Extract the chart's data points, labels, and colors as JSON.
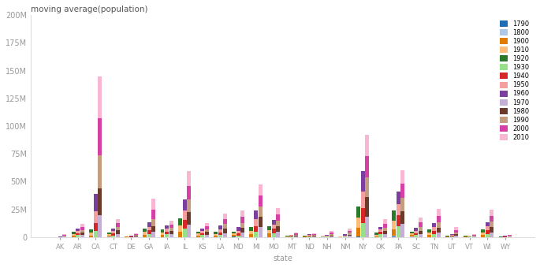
{
  "title": "moving average(population)",
  "xlabel": "state",
  "ylabel": "",
  "years": [
    "1790",
    "1800",
    "1900",
    "1910",
    "1920",
    "1930",
    "1940",
    "1950",
    "1960",
    "1970",
    "1980",
    "1990",
    "2000",
    "2010"
  ],
  "colors": [
    "#1f6eb5",
    "#aec6e8",
    "#e07b00",
    "#ffbb78",
    "#2a7a2a",
    "#98df8a",
    "#d62728",
    "#f4a0a0",
    "#7b3f9e",
    "#c5b0d5",
    "#6b3a2a",
    "#c49c80",
    "#d63fa6",
    "#f7b6d2"
  ],
  "states": [
    "AK",
    "AR",
    "CA",
    "CT",
    "DE",
    "GA",
    "IA",
    "IL",
    "KS",
    "LA",
    "MD",
    "MI",
    "MO",
    "MT",
    "ND",
    "NH",
    "NM",
    "NY",
    "OK",
    "PA",
    "SC",
    "TN",
    "UT",
    "VT",
    "WI",
    "WY"
  ],
  "data": {
    "AK": [
      0,
      0,
      0,
      0,
      0,
      0,
      0,
      128643,
      226167,
      302173,
      401851,
      550043,
      626932,
      710231
    ],
    "AR": [
      0,
      0,
      1311564,
      1574449,
      1752204,
      1854482,
      1949387,
      1909511,
      1786272,
      1923295,
      2286357,
      2350725,
      2673400,
      2915918
    ],
    "CA": [
      0,
      0,
      1485053,
      2377549,
      3426861,
      5677251,
      6907387,
      10586223,
      15717204,
      19953134,
      23667902,
      29760021,
      33871648,
      37253956
    ],
    "CT": [
      237946,
      251002,
      908420,
      1114756,
      1380631,
      1606903,
      1709242,
      2007280,
      2535234,
      3031709,
      3107576,
      3287116,
      3405565,
      3574097
    ],
    "DE": [
      59094,
      64273,
      184735,
      202322,
      223003,
      238380,
      266505,
      318085,
      446292,
      548104,
      594338,
      666168,
      783600,
      897934
    ],
    "GA": [
      0,
      0,
      2216331,
      2609121,
      2895832,
      2908506,
      3123723,
      3444578,
      3943116,
      4589575,
      5463105,
      6478216,
      8186453,
      9687653
    ],
    "IA": [
      0,
      0,
      2231853,
      2224771,
      2404021,
      2470939,
      2538268,
      2621073,
      2757537,
      2824376,
      2913808,
      2776755,
      2926324,
      3046355
    ],
    "IL": [
      12282,
      55211,
      4821550,
      5638591,
      6485280,
      7630654,
      7897241,
      8712176,
      10081158,
      11113976,
      11426518,
      11430602,
      12419293,
      12830632
    ],
    "KS": [
      0,
      0,
      1470495,
      1690949,
      1769257,
      1880999,
      1801028,
      1905299,
      2178611,
      2246578,
      2363679,
      2477574,
      2688418,
      2853118
    ],
    "LA": [
      0,
      0,
      1381625,
      1656388,
      1798509,
      2101593,
      2363880,
      2683516,
      3257022,
      3641306,
      4205900,
      4219973,
      4468976,
      4533372
    ],
    "MD": [
      319728,
      341548,
      1188044,
      1295346,
      1449661,
      1631526,
      1821244,
      2343001,
      3100689,
      3922399,
      4216975,
      4781468,
      5296486,
      5773552
    ],
    "MI": [
      0,
      4762,
      2420982,
      2810173,
      3668412,
      4842325,
      5256106,
      6371766,
      7823194,
      8875083,
      9262078,
      9295297,
      9938444,
      9883640
    ],
    "MO": [
      0,
      0,
      3106665,
      3293335,
      3404055,
      3629367,
      3784664,
      3954653,
      4319813,
      4676501,
      4916686,
      5117073,
      5595211,
      5988927
    ],
    "MT": [
      0,
      0,
      243329,
      376053,
      548889,
      537606,
      559456,
      591024,
      674767,
      694409,
      786690,
      799065,
      902195,
      989415
    ],
    "ND": [
      0,
      0,
      319146,
      577056,
      646872,
      680845,
      641935,
      619636,
      632446,
      617761,
      652717,
      638800,
      642200,
      672591
    ],
    "NH": [
      141885,
      183858,
      411588,
      430572,
      443083,
      465293,
      491524,
      533242,
      606921,
      737681,
      920610,
      1109252,
      1235786,
      1316470
    ],
    "NM": [
      0,
      0,
      195310,
      327301,
      360350,
      423317,
      531818,
      681187,
      951023,
      1016000,
      1302894,
      1515069,
      1819046,
      2059179
    ],
    "NY": [
      340120,
      589051,
      7268894,
      9113614,
      10385227,
      12588066,
      13479142,
      15233070,
      18236967,
      18236967,
      17558072,
      17990455,
      18976457,
      19378102
    ],
    "OK": [
      0,
      0,
      398331,
      1657155,
      2028283,
      2396040,
      2336434,
      2233351,
      2328284,
      2559229,
      3025290,
      3145585,
      3450654,
      3751351
    ],
    "PA": [
      434373,
      602365,
      6302115,
      7665111,
      8720017,
      9631350,
      9900180,
      10498012,
      11319366,
      11793909,
      11863895,
      11881643,
      12281054,
      12702379
    ],
    "SC": [
      249073,
      345591,
      1340316,
      1515400,
      1683724,
      1738765,
      1899804,
      2117027,
      2382594,
      2590516,
      3121820,
      3486703,
      4012012,
      4625364
    ],
    "TN": [
      35691,
      105602,
      2020616,
      2184789,
      2337885,
      2616556,
      2915841,
      3291718,
      3567089,
      3923687,
      4591120,
      4877185,
      5689283,
      6346105
    ],
    "UT": [
      0,
      0,
      276749,
      373351,
      449396,
      507847,
      550310,
      688862,
      890627,
      1059273,
      1461037,
      1722850,
      2233169,
      2763885
    ],
    "VT": [
      85425,
      154465,
      343641,
      355956,
      352428,
      359611,
      359231,
      377747,
      389881,
      444330,
      511456,
      562758,
      608827,
      625741
    ],
    "WI": [
      0,
      0,
      2069042,
      2333860,
      2632067,
      2939006,
      3137587,
      3434575,
      3951777,
      4417933,
      4705767,
      4891769,
      5363675,
      5686986
    ],
    "WY": [
      0,
      0,
      92531,
      145965,
      194402,
      225565,
      250742,
      290529,
      330066,
      332416,
      469557,
      453588,
      493782,
      563626
    ]
  },
  "n_windows": 3,
  "window_size": 5
}
